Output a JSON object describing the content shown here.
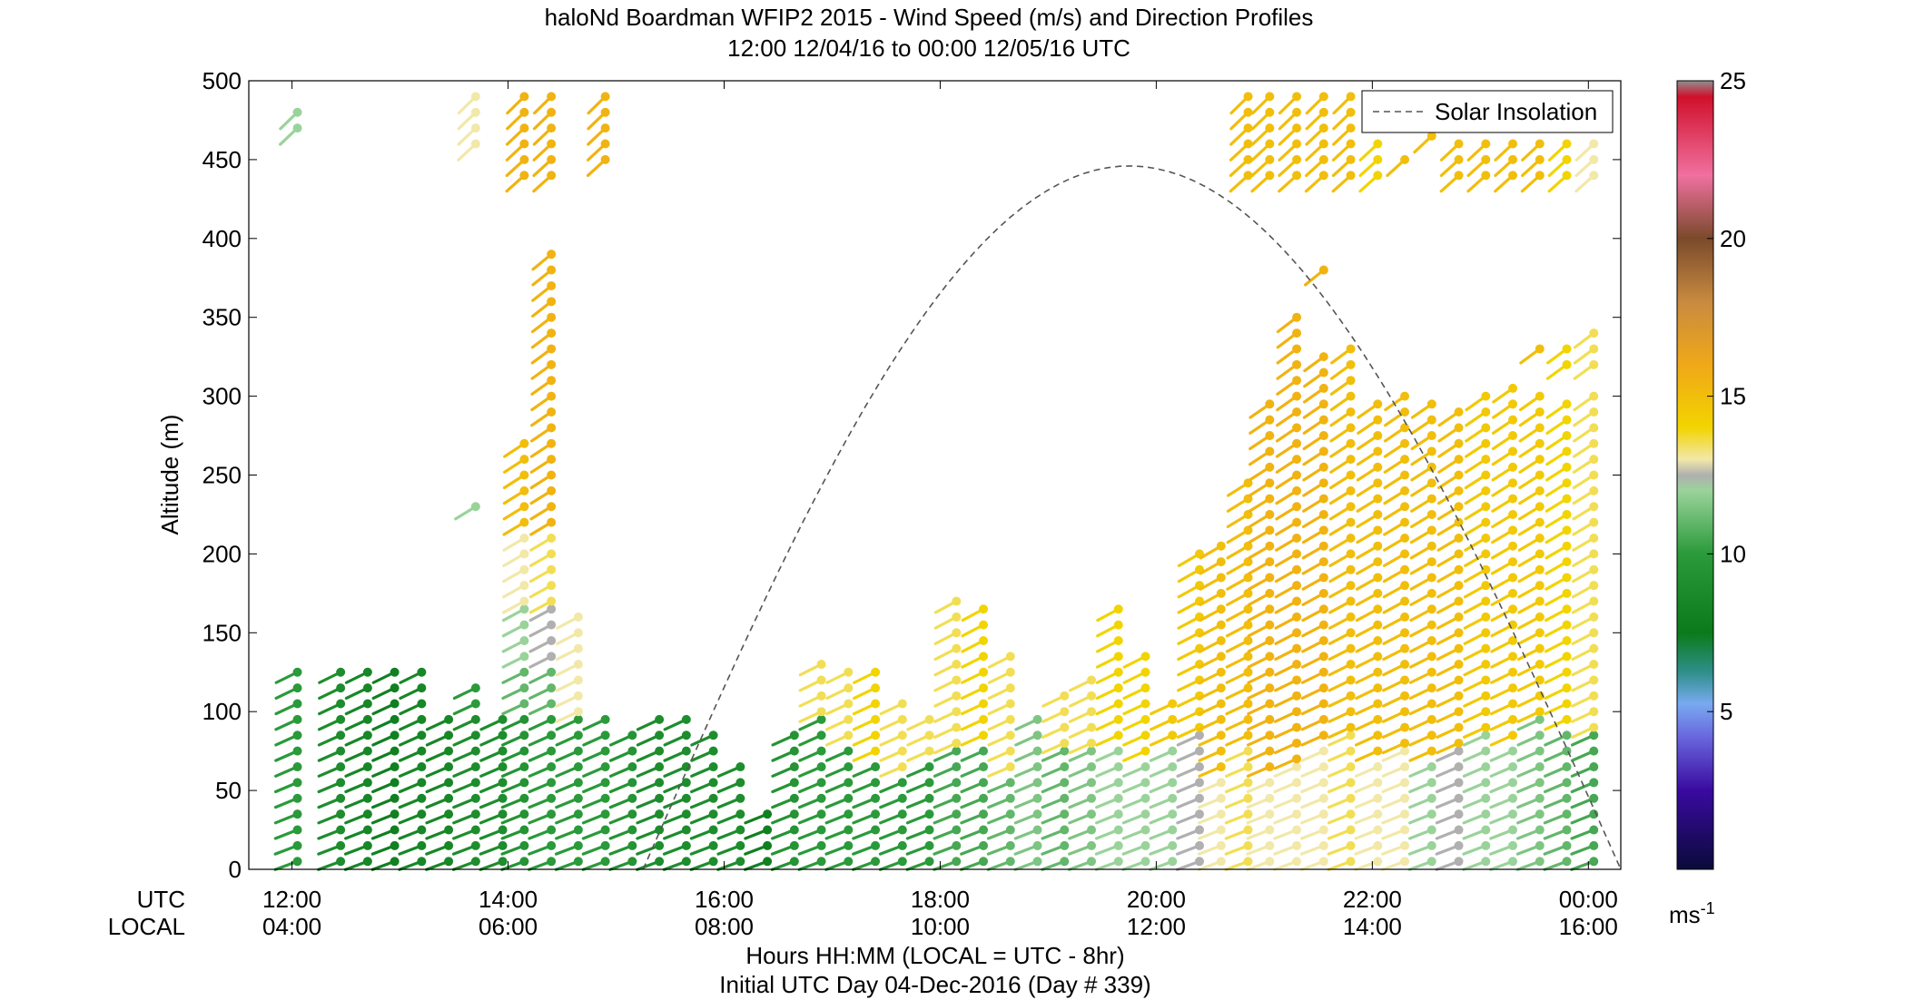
{
  "chart_data": {
    "type": "wind-barb-profile",
    "title": "haloNd Boardman WFIP2 2015 - Wind Speed (m/s) and Direction Profiles",
    "subtitle": "12:00 12/04/16 to 00:00 12/05/16  UTC",
    "ylabel": "Altitude (m)",
    "xlabel": "Hours HH:MM  (LOCAL = UTC - 8hr)",
    "footer": "Initial UTC Day 04-Dec-2016 (Day # 339)",
    "utc_label": "UTC",
    "local_label": "LOCAL",
    "ylim": [
      0,
      500
    ],
    "xlim_hours_utc": [
      11.6,
      24.3
    ],
    "y_ticks": [
      "0",
      "50",
      "100",
      "150",
      "200",
      "250",
      "300",
      "350",
      "400",
      "450",
      "500"
    ],
    "x_ticks_utc": [
      "12:00",
      "14:00",
      "16:00",
      "18:00",
      "20:00",
      "22:00",
      "00:00"
    ],
    "x_ticks_local": [
      "04:00",
      "06:00",
      "08:00",
      "10:00",
      "12:00",
      "14:00",
      "16:00"
    ],
    "legend": {
      "entry": "Solar Insolation",
      "placement": "top-right"
    },
    "colorbar": {
      "range": [
        0,
        25
      ],
      "ticks": [
        "5",
        "10",
        "15",
        "20",
        "25"
      ],
      "unit_label": "ms",
      "unit_exponent": "-1"
    },
    "solar_insolation": {
      "start_hour_utc": 15.25,
      "peak_hour_utc": 19.75,
      "end_hour_utc": 24.3,
      "peak_altitude": 446
    },
    "profiles": [
      {
        "t": 12.05,
        "segments": [
          [
            5,
            130,
            10
          ],
          [
            470,
            480,
            12
          ]
        ]
      },
      {
        "t": 12.45,
        "segments": [
          [
            5,
            125,
            9
          ]
        ]
      },
      {
        "t": 12.7,
        "segments": [
          [
            5,
            130,
            8.5
          ]
        ]
      },
      {
        "t": 12.95,
        "segments": [
          [
            5,
            130,
            8
          ]
        ]
      },
      {
        "t": 13.2,
        "segments": [
          [
            5,
            130,
            8.5
          ]
        ]
      },
      {
        "t": 13.45,
        "segments": [
          [
            5,
            100,
            8.5
          ]
        ]
      },
      {
        "t": 13.7,
        "segments": [
          [
            5,
            100,
            9
          ],
          [
            105,
            115,
            10
          ],
          [
            230,
            235,
            12
          ],
          [
            460,
            490,
            13
          ]
        ]
      },
      {
        "t": 13.95,
        "segments": [
          [
            5,
            100,
            9
          ]
        ]
      },
      {
        "t": 14.15,
        "segments": [
          [
            5,
            100,
            9.5
          ],
          [
            105,
            130,
            11
          ],
          [
            135,
            165,
            12
          ],
          [
            170,
            215,
            13
          ],
          [
            220,
            270,
            15
          ],
          [
            440,
            490,
            15.5
          ]
        ]
      },
      {
        "t": 14.4,
        "segments": [
          [
            5,
            100,
            10
          ],
          [
            105,
            130,
            11
          ],
          [
            135,
            165,
            12.5
          ],
          [
            170,
            215,
            13.5
          ],
          [
            220,
            390,
            15.5
          ],
          [
            440,
            490,
            15.5
          ]
        ]
      },
      {
        "t": 14.65,
        "segments": [
          [
            5,
            95,
            10
          ],
          [
            100,
            160,
            13
          ]
        ]
      },
      {
        "t": 14.9,
        "segments": [
          [
            5,
            95,
            10
          ],
          [
            450,
            490,
            15.5
          ]
        ]
      },
      {
        "t": 15.15,
        "segments": [
          [
            5,
            90,
            9.5
          ]
        ]
      },
      {
        "t": 15.4,
        "segments": [
          [
            5,
            95,
            9
          ]
        ]
      },
      {
        "t": 15.65,
        "segments": [
          [
            5,
            95,
            9
          ]
        ]
      },
      {
        "t": 15.9,
        "segments": [
          [
            5,
            85,
            9
          ]
        ]
      },
      {
        "t": 16.15,
        "segments": [
          [
            5,
            70,
            9
          ]
        ]
      },
      {
        "t": 16.4,
        "segments": [
          [
            5,
            35,
            8
          ]
        ]
      },
      {
        "t": 16.65,
        "segments": [
          [
            5,
            85,
            9.5
          ]
        ]
      },
      {
        "t": 16.9,
        "segments": [
          [
            5,
            95,
            10
          ],
          [
            100,
            130,
            13.5
          ]
        ]
      },
      {
        "t": 17.15,
        "segments": [
          [
            5,
            80,
            10
          ],
          [
            85,
            130,
            13.5
          ]
        ]
      },
      {
        "t": 17.4,
        "segments": [
          [
            5,
            70,
            10
          ],
          [
            75,
            130,
            14
          ]
        ]
      },
      {
        "t": 17.65,
        "segments": [
          [
            5,
            60,
            10
          ],
          [
            65,
            105,
            13.5
          ]
        ]
      },
      {
        "t": 17.9,
        "segments": [
          [
            5,
            70,
            10
          ],
          [
            75,
            100,
            13.5
          ]
        ]
      },
      {
        "t": 18.15,
        "segments": [
          [
            5,
            75,
            10.5
          ],
          [
            80,
            170,
            13.5
          ]
        ]
      },
      {
        "t": 18.4,
        "segments": [
          [
            5,
            80,
            10.5
          ],
          [
            85,
            170,
            14
          ]
        ]
      },
      {
        "t": 18.65,
        "segments": [
          [
            5,
            60,
            11
          ],
          [
            65,
            140,
            13.5
          ]
        ]
      },
      {
        "t": 18.9,
        "segments": [
          [
            5,
            95,
            11.5
          ]
        ]
      },
      {
        "t": 19.15,
        "segments": [
          [
            5,
            75,
            11
          ],
          [
            80,
            110,
            13.5
          ]
        ]
      },
      {
        "t": 19.4,
        "segments": [
          [
            5,
            75,
            11.5
          ],
          [
            80,
            120,
            13.5
          ]
        ]
      },
      {
        "t": 19.65,
        "segments": [
          [
            5,
            80,
            12
          ],
          [
            85,
            170,
            14
          ]
        ]
      },
      {
        "t": 19.9,
        "segments": [
          [
            5,
            70,
            12
          ],
          [
            75,
            140,
            14
          ]
        ]
      },
      {
        "t": 20.15,
        "segments": [
          [
            5,
            80,
            12
          ],
          [
            85,
            110,
            14.5
          ]
        ]
      },
      {
        "t": 20.4,
        "segments": [
          [
            5,
            85,
            12.5
          ],
          [
            90,
            200,
            14.5
          ]
        ]
      },
      {
        "t": 20.6,
        "segments": [
          [
            5,
            60,
            13
          ],
          [
            65,
            210,
            15
          ]
        ]
      },
      {
        "t": 20.85,
        "segments": [
          [
            5,
            80,
            13.5
          ],
          [
            85,
            245,
            15
          ],
          [
            440,
            490,
            15
          ]
        ]
      },
      {
        "t": 21.05,
        "segments": [
          [
            5,
            60,
            13
          ],
          [
            65,
            300,
            15.5
          ],
          [
            440,
            490,
            15
          ]
        ]
      },
      {
        "t": 21.3,
        "segments": [
          [
            5,
            65,
            13
          ],
          [
            70,
            350,
            15.5
          ],
          [
            440,
            490,
            15
          ]
        ]
      },
      {
        "t": 21.55,
        "segments": [
          [
            5,
            80,
            13
          ],
          [
            85,
            330,
            15.5
          ],
          [
            380,
            385,
            15.5
          ],
          [
            440,
            490,
            15
          ]
        ]
      },
      {
        "t": 21.8,
        "segments": [
          [
            5,
            85,
            13.5
          ],
          [
            90,
            330,
            15
          ],
          [
            440,
            490,
            15
          ]
        ]
      },
      {
        "t": 22.05,
        "segments": [
          [
            5,
            70,
            13
          ],
          [
            75,
            300,
            15
          ],
          [
            440,
            460,
            14
          ]
        ]
      },
      {
        "t": 22.3,
        "segments": [
          [
            5,
            75,
            13
          ],
          [
            80,
            305,
            15
          ],
          [
            450,
            455,
            15
          ]
        ]
      },
      {
        "t": 22.55,
        "segments": [
          [
            5,
            70,
            12
          ],
          [
            75,
            295,
            15
          ],
          [
            465,
            470,
            15
          ]
        ]
      },
      {
        "t": 22.8,
        "segments": [
          [
            5,
            75,
            12.5
          ],
          [
            80,
            295,
            15
          ],
          [
            440,
            465,
            15
          ]
        ]
      },
      {
        "t": 23.05,
        "segments": [
          [
            5,
            85,
            12
          ],
          [
            90,
            300,
            14.5
          ],
          [
            440,
            465,
            15
          ]
        ]
      },
      {
        "t": 23.3,
        "segments": [
          [
            5,
            80,
            12
          ],
          [
            85,
            305,
            14.5
          ],
          [
            440,
            465,
            15
          ]
        ]
      },
      {
        "t": 23.55,
        "segments": [
          [
            5,
            95,
            11.5
          ],
          [
            100,
            305,
            14.5
          ],
          [
            330,
            335,
            15
          ],
          [
            440,
            465,
            15
          ]
        ]
      },
      {
        "t": 23.8,
        "segments": [
          [
            5,
            90,
            11
          ],
          [
            95,
            300,
            14
          ],
          [
            320,
            330,
            14
          ],
          [
            440,
            465,
            14
          ]
        ]
      },
      {
        "t": 24.05,
        "segments": [
          [
            5,
            85,
            10.5
          ],
          [
            90,
            300,
            13.5
          ],
          [
            320,
            340,
            13.5
          ],
          [
            440,
            465,
            13
          ]
        ]
      }
    ]
  }
}
